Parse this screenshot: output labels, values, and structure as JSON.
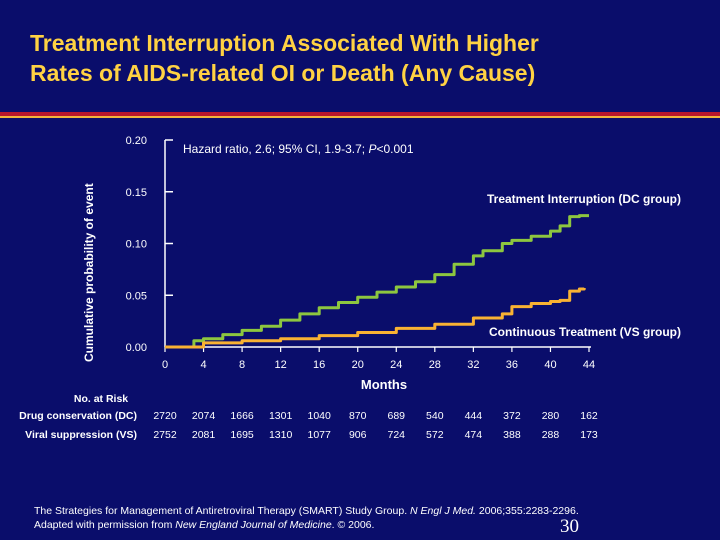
{
  "title": {
    "line1": "Treatment Interruption Associated With Higher",
    "line2": "Rates of AIDS-related OI or Death (Any Cause)"
  },
  "colors": {
    "background": "#0a0d6b",
    "title": "#ffd243",
    "dc_series": "#8dc63f",
    "vs_series": "#f9b233"
  },
  "chart_data": {
    "type": "line",
    "ylabel": "Cumulative probability of event",
    "xlabel": "Months",
    "xlim": [
      0,
      44
    ],
    "ylim": [
      0,
      0.2
    ],
    "x_ticks": [
      0,
      4,
      8,
      12,
      16,
      20,
      24,
      28,
      32,
      36,
      40,
      44
    ],
    "y_ticks": [
      "0.00",
      "0.05",
      "0.10",
      "0.15",
      "0.20"
    ],
    "annotation": {
      "prefix": "Hazard ratio, 2.6; 95% CI, 1.9-3.7; ",
      "p": "P",
      "suffix": "<0.001"
    },
    "series": [
      {
        "name": "Treatment Interruption (DC group)",
        "points": [
          [
            0,
            0
          ],
          [
            3,
            0.006
          ],
          [
            4,
            0.008
          ],
          [
            6,
            0.012
          ],
          [
            8,
            0.016
          ],
          [
            10,
            0.02
          ],
          [
            12,
            0.026
          ],
          [
            14,
            0.032
          ],
          [
            16,
            0.038
          ],
          [
            18,
            0.043
          ],
          [
            20,
            0.048
          ],
          [
            22,
            0.053
          ],
          [
            24,
            0.058
          ],
          [
            26,
            0.063
          ],
          [
            28,
            0.07
          ],
          [
            30,
            0.08
          ],
          [
            32,
            0.088
          ],
          [
            33,
            0.093
          ],
          [
            35,
            0.1
          ],
          [
            36,
            0.103
          ],
          [
            38,
            0.107
          ],
          [
            40,
            0.112
          ],
          [
            41,
            0.117
          ],
          [
            42,
            0.126
          ],
          [
            43,
            0.127
          ],
          [
            44,
            0.127
          ]
        ]
      },
      {
        "name": "Continuous Treatment (VS group)",
        "points": [
          [
            0,
            0
          ],
          [
            4,
            0.004
          ],
          [
            8,
            0.006
          ],
          [
            12,
            0.008
          ],
          [
            16,
            0.011
          ],
          [
            20,
            0.014
          ],
          [
            24,
            0.018
          ],
          [
            28,
            0.022
          ],
          [
            32,
            0.028
          ],
          [
            35,
            0.032
          ],
          [
            36,
            0.039
          ],
          [
            38,
            0.042
          ],
          [
            40,
            0.044
          ],
          [
            41,
            0.045
          ],
          [
            42,
            0.054
          ],
          [
            43,
            0.056
          ],
          [
            43.5,
            0.057
          ]
        ]
      }
    ]
  },
  "risk_table": {
    "title": "No. at Risk",
    "rows": [
      {
        "label": "Drug conservation (DC)",
        "values": [
          "2720",
          "2074",
          "1666",
          "1301",
          "1040",
          "870",
          "689",
          "540",
          "444",
          "372",
          "280",
          "162"
        ]
      },
      {
        "label": "Viral suppression (VS)",
        "values": [
          "2752",
          "2081",
          "1695",
          "1310",
          "1077",
          "906",
          "724",
          "572",
          "474",
          "388",
          "288",
          "173"
        ]
      }
    ]
  },
  "footer": {
    "line1_text": "The Strategies for Management of Antiretroviral Therapy (SMART) Study Group. ",
    "line1_journal": "N Engl J Med.",
    "line1_rest": " 2006;355:2283-2296.",
    "line2_text": "Adapted with permission from ",
    "line2_journal": "New England Journal of Medicine",
    "line2_rest": ". © 2006."
  },
  "page_number": "30"
}
